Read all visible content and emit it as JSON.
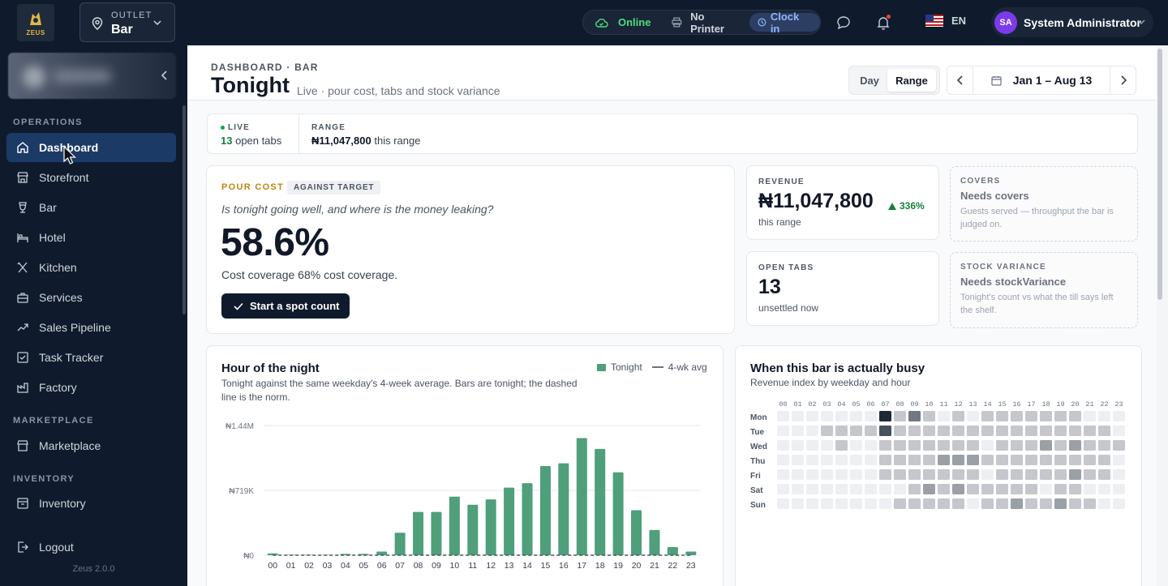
{
  "topbar": {
    "logo_text": "ZEUS",
    "outlet_label": "OUTLET",
    "outlet_value": "Bar",
    "status_online": "Online",
    "status_printer": "No Printer",
    "clock_in": "Clock in",
    "language": "EN",
    "user_initials": "SA",
    "user_name": "System Administrator"
  },
  "sidebar": {
    "sections": {
      "operations": "OPERATIONS",
      "marketplace": "MARKETPLACE",
      "inventory": "INVENTORY"
    },
    "items": [
      {
        "label": "Dashboard",
        "icon": "home-icon"
      },
      {
        "label": "Storefront",
        "icon": "storefront-icon"
      },
      {
        "label": "Bar",
        "icon": "glass-icon"
      },
      {
        "label": "Hotel",
        "icon": "bed-icon"
      },
      {
        "label": "Kitchen",
        "icon": "utensils-icon"
      },
      {
        "label": "Services",
        "icon": "briefcase-icon"
      },
      {
        "label": "Sales Pipeline",
        "icon": "trend-icon"
      },
      {
        "label": "Task Tracker",
        "icon": "checkbox-icon"
      },
      {
        "label": "Factory",
        "icon": "factory-icon"
      },
      {
        "label": "Marketplace",
        "icon": "store-icon"
      },
      {
        "label": "Inventory",
        "icon": "box-icon"
      }
    ],
    "logout": "Logout",
    "version": "Zeus 2.0.0"
  },
  "header": {
    "breadcrumb": "DASHBOARD · BAR",
    "title": "Tonight",
    "subtitle": "Live · pour cost, tabs and stock variance",
    "mode_day": "Day",
    "mode_range": "Range",
    "date_range": "Jan 1 – Aug 13"
  },
  "livebar": {
    "live_label": "LIVE",
    "open_tabs_count": "13",
    "open_tabs_text": "open tabs",
    "range_label": "RANGE",
    "range_value": "₦11,047,800",
    "range_text": "this range"
  },
  "pour_cost": {
    "tag": "POUR COST",
    "badge": "AGAINST TARGET",
    "question": "Is tonight going well, and where is the money leaking?",
    "value": "58.6%",
    "coverage": "Cost coverage 68% cost coverage.",
    "button": "Start a spot count"
  },
  "revenue": {
    "label": "REVENUE",
    "value": "₦11,047,800",
    "delta": "336%",
    "sub": "this range"
  },
  "open_tabs": {
    "label": "OPEN TABS",
    "value": "13",
    "sub": "unsettled now"
  },
  "covers": {
    "label": "COVERS",
    "title": "Needs covers",
    "desc": "Guests served — throughput the bar is judged on."
  },
  "stock_variance": {
    "label": "STOCK VARIANCE",
    "title": "Needs stockVariance",
    "desc": "Tonight's count vs what the till says left the shelf."
  },
  "hour_chart": {
    "title": "Hour of the night",
    "desc": "Tonight against the same weekday's 4-week average. Bars are tonight; the dashed line is the norm.",
    "legend_tonight": "Tonight",
    "legend_avg": "4-wk avg"
  },
  "busy_chart": {
    "title": "When this bar is actually busy",
    "desc": "Revenue index by weekday and hour"
  },
  "chart_data": [
    {
      "type": "bar",
      "categories": [
        "00",
        "01",
        "02",
        "03",
        "04",
        "05",
        "06",
        "07",
        "08",
        "09",
        "10",
        "11",
        "12",
        "13",
        "14",
        "15",
        "16",
        "17",
        "18",
        "19",
        "20",
        "21",
        "22",
        "23"
      ],
      "series": [
        {
          "name": "Tonight",
          "values": [
            20000,
            5000,
            5000,
            5000,
            15000,
            15000,
            40000,
            250000,
            480000,
            480000,
            650000,
            560000,
            620000,
            750000,
            800000,
            990000,
            1020000,
            1300000,
            1180000,
            920000,
            500000,
            280000,
            90000,
            40000
          ]
        },
        {
          "name": "4-wk avg",
          "values": [
            0,
            0,
            0,
            0,
            0,
            0,
            0,
            0,
            0,
            0,
            0,
            0,
            0,
            0,
            0,
            0,
            0,
            0,
            0,
            0,
            0,
            0,
            0,
            0
          ]
        }
      ],
      "yticks": [
        "₦0",
        "₦719K",
        "₦1.44M"
      ],
      "ylim": [
        0,
        1440000
      ],
      "colors": {
        "bar": "#4f9f7a",
        "avg": "#4b5563"
      },
      "grid": true,
      "legend": "top-right"
    },
    {
      "type": "heatmap",
      "x": [
        "00",
        "01",
        "02",
        "03",
        "04",
        "05",
        "06",
        "07",
        "08",
        "09",
        "10",
        "11",
        "12",
        "13",
        "14",
        "15",
        "16",
        "17",
        "18",
        "19",
        "20",
        "21",
        "22",
        "23"
      ],
      "y": [
        "Mon",
        "Tue",
        "Wed",
        "Thu",
        "Fri",
        "Sat",
        "Sun"
      ],
      "values": [
        [
          0,
          0,
          0,
          0,
          0,
          0,
          0,
          5,
          1,
          3,
          1,
          0,
          1,
          0,
          1,
          1,
          1,
          1,
          1,
          1,
          1,
          0,
          0,
          0
        ],
        [
          0,
          0,
          0,
          1,
          1,
          1,
          1,
          4,
          1,
          1,
          1,
          1,
          1,
          1,
          1,
          1,
          1,
          1,
          1,
          1,
          1,
          1,
          1,
          0
        ],
        [
          0,
          0,
          0,
          0,
          1,
          0,
          0,
          1,
          1,
          1,
          1,
          1,
          1,
          1,
          0,
          1,
          1,
          1,
          2,
          1,
          2,
          1,
          1,
          1
        ],
        [
          0,
          0,
          0,
          0,
          0,
          0,
          0,
          1,
          1,
          1,
          1,
          2,
          2,
          2,
          1,
          1,
          1,
          1,
          1,
          1,
          1,
          1,
          1,
          0
        ],
        [
          0,
          0,
          0,
          0,
          0,
          0,
          0,
          1,
          1,
          1,
          1,
          1,
          1,
          1,
          0,
          1,
          1,
          1,
          1,
          1,
          2,
          1,
          1,
          0
        ],
        [
          0,
          0,
          0,
          0,
          0,
          0,
          0,
          0,
          0,
          1,
          2,
          1,
          2,
          1,
          1,
          1,
          1,
          1,
          0,
          1,
          1,
          0,
          0,
          0
        ],
        [
          0,
          0,
          0,
          0,
          0,
          0,
          0,
          0,
          1,
          1,
          1,
          1,
          1,
          0,
          1,
          1,
          2,
          1,
          1,
          2,
          1,
          1,
          0,
          0
        ]
      ],
      "colors": {
        "low": "#eeeff2",
        "high": "#1f2937"
      }
    }
  ]
}
